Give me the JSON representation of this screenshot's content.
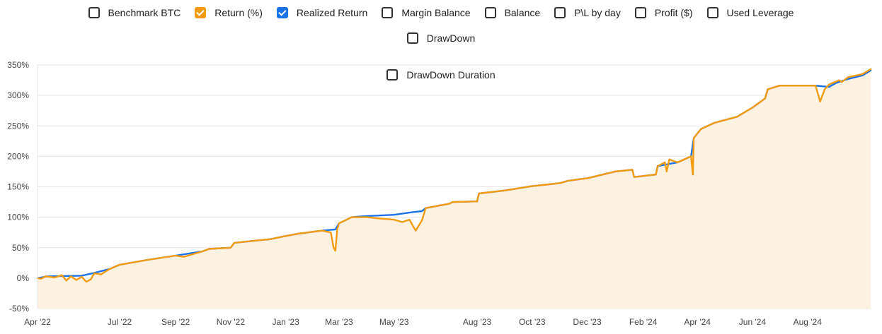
{
  "legend": {
    "items": [
      {
        "label": "Benchmark BTC",
        "checked": false,
        "color": ""
      },
      {
        "label": "Return (%)",
        "checked": true,
        "color": "#f39c12"
      },
      {
        "label": "Realized Return",
        "checked": true,
        "color": "#1a73e8"
      },
      {
        "label": "Margin Balance",
        "checked": false,
        "color": ""
      },
      {
        "label": "Balance",
        "checked": false,
        "color": ""
      },
      {
        "label": "P\\L by day",
        "checked": false,
        "color": ""
      },
      {
        "label": "Profit ($)",
        "checked": false,
        "color": ""
      },
      {
        "label": "Used Leverage",
        "checked": false,
        "color": ""
      },
      {
        "label": "DrawDown",
        "checked": false,
        "color": ""
      },
      {
        "label": "DrawDown Duration",
        "checked": false,
        "color": ""
      }
    ]
  },
  "chart_data": {
    "type": "line",
    "title": "",
    "xlabel": "",
    "ylabel": "",
    "y_unit": "%",
    "ylim": [
      -50,
      350
    ],
    "y_ticks": [
      "-50%",
      "0%",
      "50%",
      "100%",
      "150%",
      "200%",
      "250%",
      "300%",
      "350%"
    ],
    "x_range": [
      "2022-04-01",
      "2024-10-10"
    ],
    "x_ticks": [
      {
        "date": "2022-04-01",
        "label": "Apr '22"
      },
      {
        "date": "2022-07-01",
        "label": "Jul '22"
      },
      {
        "date": "2022-09-01",
        "label": "Sep '22"
      },
      {
        "date": "2022-11-01",
        "label": "Nov '22"
      },
      {
        "date": "2023-01-01",
        "label": "Jan '23"
      },
      {
        "date": "2023-03-01",
        "label": "Mar '23"
      },
      {
        "date": "2023-05-01",
        "label": "May '23"
      },
      {
        "date": "2023-08-01",
        "label": "Aug '23"
      },
      {
        "date": "2023-10-01",
        "label": "Oct '23"
      },
      {
        "date": "2023-12-01",
        "label": "Dec '23"
      },
      {
        "date": "2024-02-01",
        "label": "Feb '24"
      },
      {
        "date": "2024-04-01",
        "label": "Apr '24"
      },
      {
        "date": "2024-06-01",
        "label": "Jun '24"
      },
      {
        "date": "2024-08-01",
        "label": "Aug '24"
      }
    ],
    "grid": true,
    "series": [
      {
        "name": "Realized Return",
        "color": "#1a73e8",
        "fill": false,
        "points": [
          [
            "2022-04-01",
            0
          ],
          [
            "2022-04-12",
            3
          ],
          [
            "2022-05-20",
            4
          ],
          [
            "2022-06-01",
            8
          ],
          [
            "2022-06-20",
            15
          ],
          [
            "2022-07-01",
            22
          ],
          [
            "2022-08-01",
            30
          ],
          [
            "2022-09-01",
            37
          ],
          [
            "2022-10-01",
            44
          ],
          [
            "2022-10-08",
            48
          ],
          [
            "2022-11-01",
            50
          ],
          [
            "2022-11-05",
            58
          ],
          [
            "2022-12-01",
            62
          ],
          [
            "2022-12-15",
            64
          ],
          [
            "2022-12-31",
            69
          ],
          [
            "2023-01-15",
            73
          ],
          [
            "2023-02-10",
            78
          ],
          [
            "2023-02-25",
            80
          ],
          [
            "2023-03-01",
            90
          ],
          [
            "2023-03-15",
            100
          ],
          [
            "2023-04-01",
            102
          ],
          [
            "2023-05-01",
            104
          ],
          [
            "2023-05-20",
            108
          ],
          [
            "2023-06-01",
            110
          ],
          [
            "2023-06-05",
            115
          ],
          [
            "2023-07-01",
            122
          ],
          [
            "2023-07-05",
            125
          ],
          [
            "2023-08-01",
            126
          ],
          [
            "2023-08-03",
            139
          ],
          [
            "2023-09-01",
            144
          ],
          [
            "2023-10-01",
            151
          ],
          [
            "2023-11-01",
            156
          ],
          [
            "2023-11-10",
            160
          ],
          [
            "2023-12-01",
            164
          ],
          [
            "2024-01-01",
            175
          ],
          [
            "2024-01-20",
            178
          ],
          [
            "2024-01-22",
            166
          ],
          [
            "2024-02-15",
            170
          ],
          [
            "2024-02-17",
            184
          ],
          [
            "2024-03-10",
            190
          ],
          [
            "2024-03-25",
            200
          ],
          [
            "2024-03-28",
            230
          ],
          [
            "2024-04-05",
            245
          ],
          [
            "2024-04-20",
            255
          ],
          [
            "2024-05-15",
            265
          ],
          [
            "2024-06-01",
            280
          ],
          [
            "2024-06-15",
            295
          ],
          [
            "2024-06-18",
            310
          ],
          [
            "2024-07-01",
            316
          ],
          [
            "2024-08-01",
            316
          ],
          [
            "2024-08-10",
            316
          ],
          [
            "2024-08-25",
            314
          ],
          [
            "2024-09-01",
            320
          ],
          [
            "2024-09-15",
            327
          ],
          [
            "2024-10-01",
            333
          ],
          [
            "2024-10-10",
            341
          ]
        ]
      },
      {
        "name": "Return (%)",
        "color": "#f39c12",
        "fill": true,
        "fill_color": "#fdf1e1",
        "points": [
          [
            "2022-04-01",
            0
          ],
          [
            "2022-04-05",
            -1
          ],
          [
            "2022-04-10",
            3
          ],
          [
            "2022-04-20",
            1
          ],
          [
            "2022-04-28",
            5
          ],
          [
            "2022-05-03",
            -4
          ],
          [
            "2022-05-08",
            3
          ],
          [
            "2022-05-14",
            -3
          ],
          [
            "2022-05-20",
            2
          ],
          [
            "2022-05-25",
            -6
          ],
          [
            "2022-05-30",
            -2
          ],
          [
            "2022-06-03",
            8
          ],
          [
            "2022-06-10",
            6
          ],
          [
            "2022-06-20",
            15
          ],
          [
            "2022-07-01",
            22
          ],
          [
            "2022-08-01",
            30
          ],
          [
            "2022-09-01",
            37
          ],
          [
            "2022-09-10",
            35
          ],
          [
            "2022-10-01",
            44
          ],
          [
            "2022-10-08",
            48
          ],
          [
            "2022-11-01",
            50
          ],
          [
            "2022-11-05",
            58
          ],
          [
            "2022-12-01",
            62
          ],
          [
            "2022-12-15",
            64
          ],
          [
            "2022-12-31",
            69
          ],
          [
            "2023-01-15",
            73
          ],
          [
            "2023-02-10",
            78
          ],
          [
            "2023-02-20",
            75
          ],
          [
            "2023-02-23",
            50
          ],
          [
            "2023-02-25",
            45
          ],
          [
            "2023-02-27",
            80
          ],
          [
            "2023-03-01",
            90
          ],
          [
            "2023-03-15",
            100
          ],
          [
            "2023-04-01",
            100
          ],
          [
            "2023-04-15",
            98
          ],
          [
            "2023-05-01",
            96
          ],
          [
            "2023-05-10",
            92
          ],
          [
            "2023-05-18",
            96
          ],
          [
            "2023-05-25",
            78
          ],
          [
            "2023-06-01",
            95
          ],
          [
            "2023-06-05",
            115
          ],
          [
            "2023-07-01",
            122
          ],
          [
            "2023-07-05",
            125
          ],
          [
            "2023-08-01",
            126
          ],
          [
            "2023-08-03",
            139
          ],
          [
            "2023-09-01",
            144
          ],
          [
            "2023-10-01",
            151
          ],
          [
            "2023-11-01",
            156
          ],
          [
            "2023-11-10",
            160
          ],
          [
            "2023-12-01",
            164
          ],
          [
            "2024-01-01",
            175
          ],
          [
            "2024-01-20",
            178
          ],
          [
            "2024-01-22",
            166
          ],
          [
            "2024-02-15",
            170
          ],
          [
            "2024-02-17",
            184
          ],
          [
            "2024-02-25",
            190
          ],
          [
            "2024-02-27",
            175
          ],
          [
            "2024-03-01",
            195
          ],
          [
            "2024-03-10",
            190
          ],
          [
            "2024-03-25",
            200
          ],
          [
            "2024-03-27",
            170
          ],
          [
            "2024-03-28",
            230
          ],
          [
            "2024-04-05",
            245
          ],
          [
            "2024-04-20",
            255
          ],
          [
            "2024-05-15",
            265
          ],
          [
            "2024-06-01",
            280
          ],
          [
            "2024-06-15",
            295
          ],
          [
            "2024-06-18",
            310
          ],
          [
            "2024-07-01",
            316
          ],
          [
            "2024-08-01",
            316
          ],
          [
            "2024-08-10",
            316
          ],
          [
            "2024-08-15",
            290
          ],
          [
            "2024-08-20",
            310
          ],
          [
            "2024-08-25",
            318
          ],
          [
            "2024-09-05",
            325
          ],
          [
            "2024-09-08",
            322
          ],
          [
            "2024-09-15",
            330
          ],
          [
            "2024-10-01",
            335
          ],
          [
            "2024-10-10",
            343
          ]
        ]
      }
    ]
  }
}
